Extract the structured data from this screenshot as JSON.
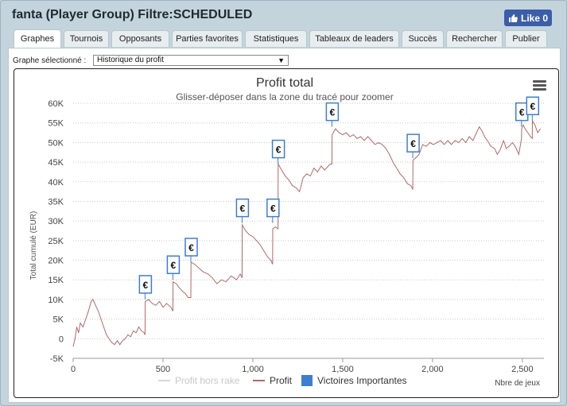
{
  "window": {
    "title": "fanta (Player Group) Filtre:SCHEDULED"
  },
  "like_button": {
    "label": "Like 0"
  },
  "tabs": [
    "Graphes",
    "Tournois",
    "Opposants",
    "Parties favorites",
    "Statistiques",
    "Tableaux de leaders",
    "Succès",
    "Rechercher",
    "Publier"
  ],
  "active_tab": "Graphes",
  "graph_select": {
    "label": "Graphe sélectionné :",
    "value": "Historique du profit"
  },
  "colors": {
    "profit_line": "#b06a6a",
    "rake_line": "#d8d8d8",
    "marker": "#3c7fd1",
    "grid": "#c8c8c8"
  },
  "chart_data": {
    "type": "line",
    "title": "Profit total",
    "subtitle": "Glisser-déposer dans la zone du tracé pour zoomer",
    "xlabel": "Nbre de jeux",
    "ylabel": "Total cumulé (EUR)",
    "xlim": [
      0,
      2620
    ],
    "ylim": [
      -5000,
      60000
    ],
    "x_ticks": [
      0,
      500,
      1000,
      1500,
      2000,
      2500
    ],
    "x_tick_labels": [
      "0",
      "500",
      "1,000",
      "1,500",
      "2,000",
      "2,500"
    ],
    "y_ticks": [
      -5000,
      0,
      5000,
      10000,
      15000,
      20000,
      25000,
      30000,
      35000,
      40000,
      45000,
      50000,
      55000,
      60000
    ],
    "y_tick_labels": [
      "-5K",
      "0",
      "5K",
      "10K",
      "15K",
      "20K",
      "25K",
      "30K",
      "35K",
      "40K",
      "45K",
      "50K",
      "55K",
      "60K"
    ],
    "legend": [
      "Profit hors rake",
      "Profit",
      "Victoires Importantes"
    ],
    "marker_symbol": "€",
    "series": [
      {
        "name": "Profit",
        "points": [
          [
            0,
            -2000
          ],
          [
            10,
            0
          ],
          [
            20,
            3000
          ],
          [
            30,
            1500
          ],
          [
            40,
            4000
          ],
          [
            55,
            3000
          ],
          [
            70,
            5000
          ],
          [
            85,
            7000
          ],
          [
            100,
            9500
          ],
          [
            110,
            10000
          ],
          [
            125,
            8500
          ],
          [
            140,
            7000
          ],
          [
            155,
            5000
          ],
          [
            170,
            3000
          ],
          [
            185,
            1000
          ],
          [
            200,
            0
          ],
          [
            215,
            -1000
          ],
          [
            230,
            -1500
          ],
          [
            245,
            -500
          ],
          [
            260,
            -1500
          ],
          [
            275,
            -500
          ],
          [
            290,
            0
          ],
          [
            305,
            1000
          ],
          [
            320,
            500
          ],
          [
            335,
            2000
          ],
          [
            350,
            1500
          ],
          [
            365,
            3000
          ],
          [
            380,
            2000
          ],
          [
            395,
            1500
          ],
          [
            400,
            1000
          ],
          [
            401,
            9500
          ],
          [
            420,
            10000
          ],
          [
            440,
            9000
          ],
          [
            460,
            8500
          ],
          [
            480,
            9500
          ],
          [
            500,
            8000
          ],
          [
            520,
            9000
          ],
          [
            545,
            8000
          ],
          [
            555,
            7000
          ],
          [
            556,
            14500
          ],
          [
            575,
            14000
          ],
          [
            590,
            13000
          ],
          [
            610,
            12000
          ],
          [
            625,
            11500
          ],
          [
            640,
            10500
          ],
          [
            655,
            10500
          ],
          [
            656,
            19500
          ],
          [
            675,
            19000
          ],
          [
            700,
            18000
          ],
          [
            725,
            17000
          ],
          [
            750,
            16500
          ],
          [
            775,
            15500
          ],
          [
            800,
            14000
          ],
          [
            825,
            15000
          ],
          [
            850,
            14500
          ],
          [
            880,
            16000
          ],
          [
            910,
            15000
          ],
          [
            930,
            16500
          ],
          [
            940,
            15500
          ],
          [
            941,
            29000
          ],
          [
            960,
            27500
          ],
          [
            980,
            26500
          ],
          [
            1000,
            26000
          ],
          [
            1020,
            25000
          ],
          [
            1040,
            24000
          ],
          [
            1060,
            22500
          ],
          [
            1080,
            21000
          ],
          [
            1100,
            20000
          ],
          [
            1110,
            19000
          ],
          [
            1111,
            28000
          ],
          [
            1125,
            28500
          ],
          [
            1140,
            28000
          ],
          [
            1141,
            44500
          ],
          [
            1160,
            43000
          ],
          [
            1180,
            41500
          ],
          [
            1200,
            40500
          ],
          [
            1220,
            39000
          ],
          [
            1240,
            38500
          ],
          [
            1260,
            37500
          ],
          [
            1280,
            41000
          ],
          [
            1300,
            42000
          ],
          [
            1320,
            41500
          ],
          [
            1340,
            43500
          ],
          [
            1360,
            42500
          ],
          [
            1380,
            44000
          ],
          [
            1400,
            43000
          ],
          [
            1430,
            44500
          ],
          [
            1440,
            44500
          ],
          [
            1441,
            52000
          ],
          [
            1460,
            53500
          ],
          [
            1480,
            52500
          ],
          [
            1500,
            52000
          ],
          [
            1520,
            52500
          ],
          [
            1540,
            51500
          ],
          [
            1560,
            52000
          ],
          [
            1580,
            51000
          ],
          [
            1600,
            51500
          ],
          [
            1620,
            50500
          ],
          [
            1640,
            51500
          ],
          [
            1660,
            50500
          ],
          [
            1680,
            49500
          ],
          [
            1700,
            50000
          ],
          [
            1720,
            49500
          ],
          [
            1740,
            48500
          ],
          [
            1760,
            47000
          ],
          [
            1780,
            45000
          ],
          [
            1800,
            43500
          ],
          [
            1820,
            42000
          ],
          [
            1840,
            41000
          ],
          [
            1860,
            39500
          ],
          [
            1880,
            39000
          ],
          [
            1890,
            38000
          ],
          [
            1891,
            45500
          ],
          [
            1905,
            46000
          ],
          [
            1925,
            47000
          ],
          [
            1945,
            49500
          ],
          [
            1965,
            49000
          ],
          [
            1985,
            50000
          ],
          [
            2005,
            49500
          ],
          [
            2025,
            50000
          ],
          [
            2045,
            50500
          ],
          [
            2065,
            49500
          ],
          [
            2085,
            50500
          ],
          [
            2105,
            49500
          ],
          [
            2125,
            50500
          ],
          [
            2145,
            50000
          ],
          [
            2165,
            51000
          ],
          [
            2185,
            50000
          ],
          [
            2205,
            51500
          ],
          [
            2225,
            50500
          ],
          [
            2245,
            52500
          ],
          [
            2260,
            54000
          ],
          [
            2275,
            53000
          ],
          [
            2290,
            51500
          ],
          [
            2305,
            50500
          ],
          [
            2325,
            49000
          ],
          [
            2345,
            48500
          ],
          [
            2360,
            47000
          ],
          [
            2375,
            48000
          ],
          [
            2395,
            50500
          ],
          [
            2410,
            48500
          ],
          [
            2425,
            49000
          ],
          [
            2445,
            50000
          ],
          [
            2460,
            49000
          ],
          [
            2480,
            47000
          ],
          [
            2495,
            51000
          ],
          [
            2496,
            53500
          ],
          [
            2505,
            54500
          ],
          [
            2515,
            53500
          ],
          [
            2530,
            52500
          ],
          [
            2545,
            51500
          ],
          [
            2555,
            51000
          ],
          [
            2556,
            55500
          ],
          [
            2570,
            54500
          ],
          [
            2585,
            52500
          ],
          [
            2600,
            53500
          ]
        ]
      }
    ],
    "markers": [
      {
        "x": 400,
        "y": 10000
      },
      {
        "x": 555,
        "y": 15000
      },
      {
        "x": 655,
        "y": 19500
      },
      {
        "x": 940,
        "y": 29500
      },
      {
        "x": 1110,
        "y": 29500
      },
      {
        "x": 1140,
        "y": 44500
      },
      {
        "x": 1440,
        "y": 54000
      },
      {
        "x": 1890,
        "y": 46000
      },
      {
        "x": 2495,
        "y": 54000
      },
      {
        "x": 2555,
        "y": 55500
      }
    ]
  }
}
